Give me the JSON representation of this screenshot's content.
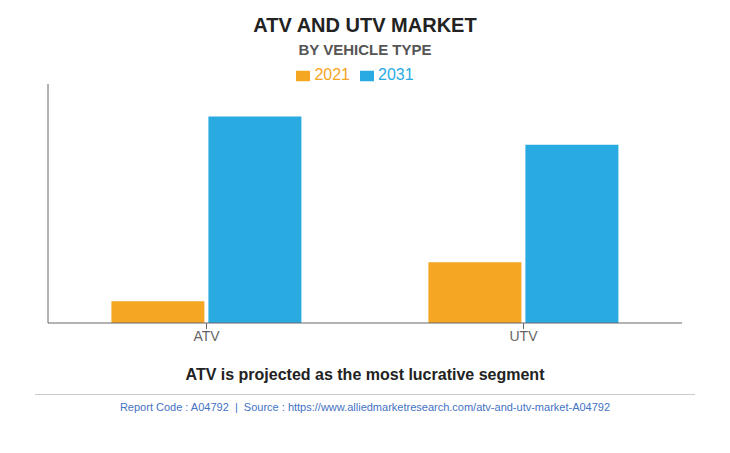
{
  "chart_data": {
    "type": "bar",
    "title": "ATV AND UTV MARKET",
    "subtitle": "BY VEHICLE TYPE",
    "caption": "ATV is projected as the most lucrative segment",
    "footer": "Report Code : A04792  |  Source : https://www.alliedmarketresearch.com/atv-and-utv-market-A04792",
    "categories": [
      "ATV",
      "UTV"
    ],
    "series": [
      {
        "name": "2021",
        "color": "#F5A623",
        "values": [
          1.0,
          2.8
        ]
      },
      {
        "name": "2031",
        "color": "#29ABE2",
        "values": [
          9.5,
          8.2
        ]
      }
    ],
    "ylim": [
      0,
      11
    ],
    "grid": false,
    "legend": "top",
    "tick_labels": "x"
  }
}
